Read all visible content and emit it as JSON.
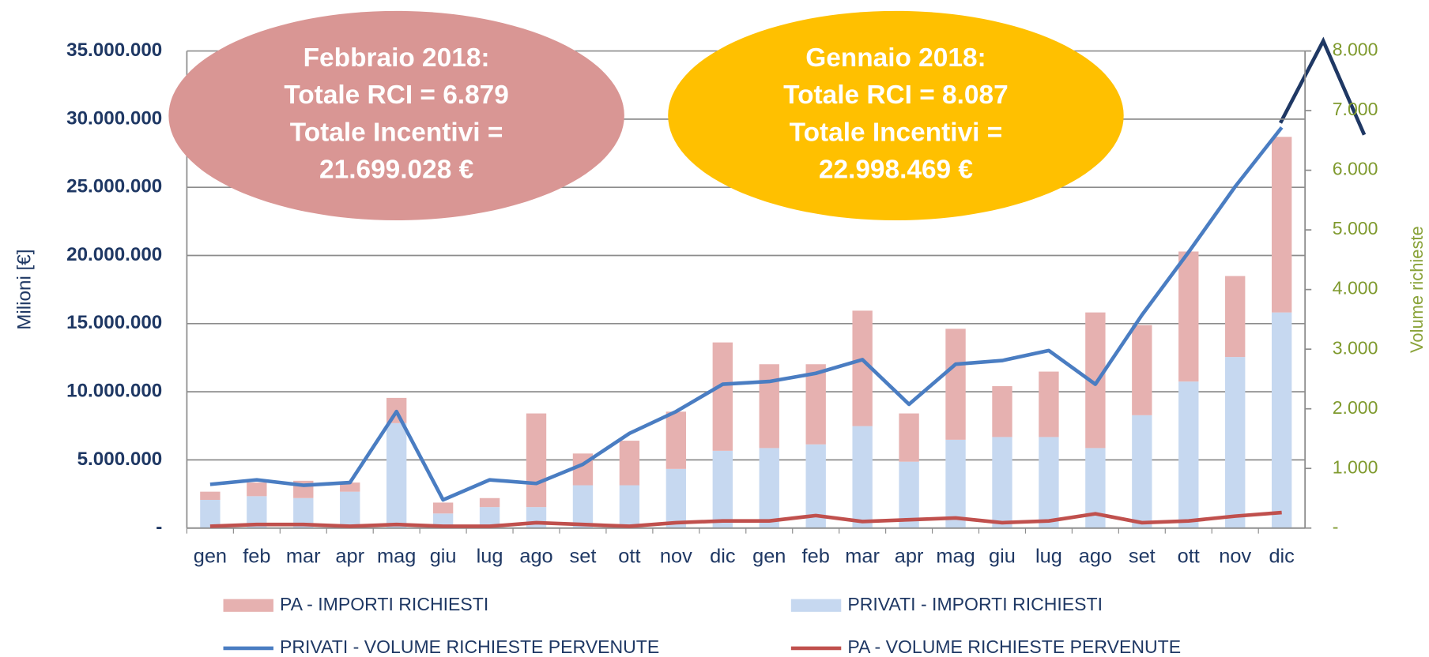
{
  "chart_data": {
    "type": "bar",
    "y_label": "Milioni [€]",
    "y2_label": "Volume richieste",
    "categories": [
      "gen",
      "feb",
      "mar",
      "apr",
      "mag",
      "giu",
      "lug",
      "ago",
      "set",
      "ott",
      "nov",
      "dic",
      "gen",
      "feb",
      "mar",
      "apr",
      "mag",
      "giu",
      "lug",
      "ago",
      "set",
      "ott",
      "nov",
      "dic"
    ],
    "series": [
      {
        "name": "PA - IMPORTI RICHIESTI",
        "kind": "bar",
        "color": "#e6b1b0",
        "values": [
          600000,
          1000000,
          1270000,
          670000,
          1850000,
          800000,
          660000,
          6870000,
          2330000,
          3270000,
          4200000,
          7950000,
          6150000,
          5880000,
          8470000,
          3540000,
          8140000,
          3730000,
          4800000,
          9950000,
          6610000,
          9540000,
          5940000,
          12880000
        ]
      },
      {
        "name": "PRIVATI - IMPORTI RICHIESTI",
        "kind": "bar",
        "color": "#c6d8f0",
        "values": [
          2070000,
          2340000,
          2200000,
          2670000,
          7700000,
          1070000,
          1540000,
          1540000,
          3140000,
          3140000,
          4340000,
          5670000,
          5870000,
          6140000,
          7480000,
          4870000,
          6480000,
          6680000,
          6680000,
          5870000,
          8280000,
          10750000,
          12550000,
          15820000
        ]
      },
      {
        "name": "PRIVATI - VOLUME RICHIESTE PERVENUTE",
        "kind": "line",
        "axis": "y2",
        "color": "#4a7dc2",
        "values": [
          733,
          809,
          718,
          763,
          1954,
          473,
          809,
          748,
          1069,
          1588,
          1954,
          2412,
          2458,
          2595,
          2824,
          2076,
          2748,
          2809,
          2977,
          2412,
          3573,
          4626,
          5725,
          6718
        ]
      },
      {
        "name": "PA - VOLUME RICHIESTE PERVENUTE",
        "kind": "line",
        "axis": "y2",
        "color": "#c0504d",
        "values": [
          30,
          60,
          60,
          30,
          60,
          30,
          30,
          90,
          60,
          30,
          90,
          120,
          120,
          210,
          110,
          140,
          170,
          90,
          120,
          240,
          90,
          120,
          200,
          260
        ]
      }
    ],
    "ylim": [
      0,
      35000000
    ],
    "yticks": [
      {
        "value": 0,
        "label": "-"
      },
      {
        "value": 5000000,
        "label": "5.000.000"
      },
      {
        "value": 10000000,
        "label": "10.000.000"
      },
      {
        "value": 15000000,
        "label": "15.000.000"
      },
      {
        "value": 20000000,
        "label": "20.000.000"
      },
      {
        "value": 25000000,
        "label": "25.000.000"
      },
      {
        "value": 30000000,
        "label": "30.000.000"
      },
      {
        "value": 35000000,
        "label": "35.000.000"
      }
    ],
    "y2lim": [
      0,
      8000
    ],
    "y2ticks": [
      {
        "value": 0,
        "label": "-"
      },
      {
        "value": 1000,
        "label": "1.000"
      },
      {
        "value": 2000,
        "label": "2.000"
      },
      {
        "value": 3000,
        "label": "3.000"
      },
      {
        "value": 4000,
        "label": "4.000"
      },
      {
        "value": 5000,
        "label": "5.000"
      },
      {
        "value": 6000,
        "label": "6.000"
      },
      {
        "value": 7000,
        "label": "7.000"
      },
      {
        "value": 8000,
        "label": "8.000"
      }
    ],
    "grid": true,
    "annotations": [
      {
        "color": "#d99694",
        "lines": [
          "Febbraio 2018:",
          "Totale RCI = 6.879",
          "Totale Incentivi =",
          "21.699.028 €"
        ]
      },
      {
        "color": "#ffc000",
        "lines": [
          "Gennaio 2018:",
          "Totale RCI = 8.087",
          "Totale Incentivi =",
          "22.998.469 €"
        ]
      }
    ]
  }
}
